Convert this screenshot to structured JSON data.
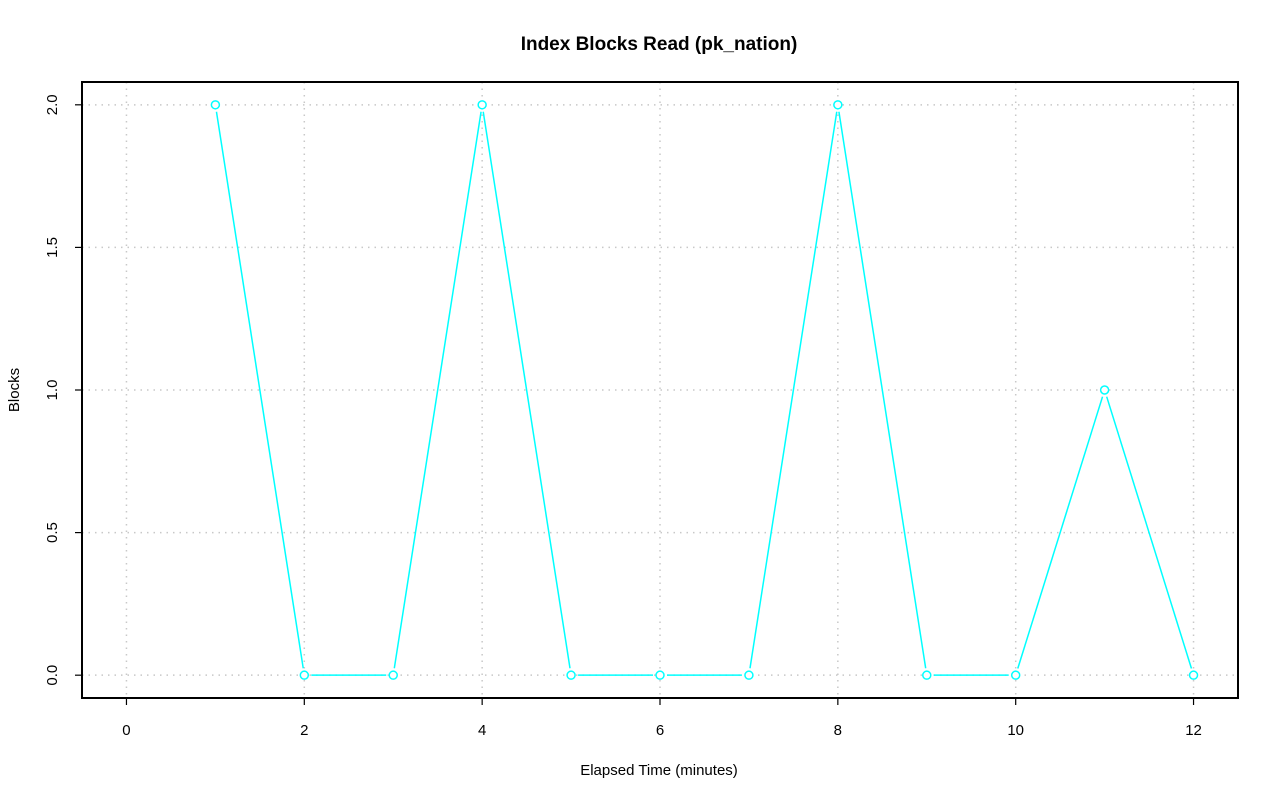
{
  "chart_data": {
    "type": "line",
    "title": "Index Blocks Read (pk_nation)",
    "xlabel": "Elapsed Time (minutes)",
    "ylabel": "Blocks",
    "xlim": [
      -0.5,
      12.5
    ],
    "ylim": [
      -0.08,
      2.08
    ],
    "x_ticks": [
      0,
      2,
      4,
      6,
      8,
      10,
      12
    ],
    "y_ticks": [
      0.0,
      0.5,
      1.0,
      1.5,
      2.0
    ],
    "x_tick_labels": [
      "0",
      "2",
      "4",
      "6",
      "8",
      "10",
      "12"
    ],
    "y_tick_labels": [
      "0.0",
      "0.5",
      "1.0",
      "1.5",
      "2.0"
    ],
    "grid": true,
    "series": [
      {
        "color": "#00ffff",
        "marker": "open-circle",
        "x": [
          1,
          2,
          3,
          4,
          5,
          6,
          7,
          8,
          9,
          10,
          11,
          12
        ],
        "y": [
          2,
          0,
          0,
          2,
          0,
          0,
          0,
          2,
          0,
          0,
          1,
          0
        ]
      }
    ]
  }
}
